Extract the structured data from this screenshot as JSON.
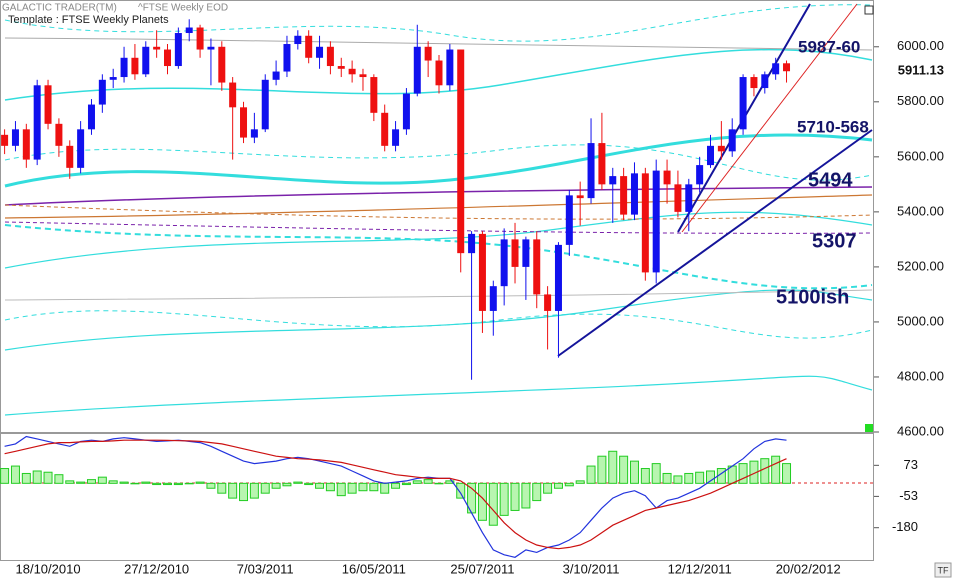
{
  "chart_data": {
    "type": "candlestick",
    "header": "GALACTIC TRADER(TM)",
    "symbol": "^FTSE Weekly EOD",
    "template": "Template : FTSE Weekly Planets",
    "corner_label": "TF",
    "up_color": "#1010ee",
    "down_color": "#ee1010",
    "ohlc": [
      [
        5680,
        5700,
        5610,
        5640
      ],
      [
        5640,
        5730,
        5620,
        5700
      ],
      [
        5700,
        5720,
        5560,
        5590
      ],
      [
        5590,
        5880,
        5570,
        5860
      ],
      [
        5860,
        5880,
        5700,
        5720
      ],
      [
        5720,
        5740,
        5600,
        5640
      ],
      [
        5640,
        5660,
        5520,
        5560
      ],
      [
        5560,
        5730,
        5540,
        5700
      ],
      [
        5700,
        5810,
        5680,
        5790
      ],
      [
        5790,
        5900,
        5760,
        5880
      ],
      [
        5880,
        5920,
        5850,
        5890
      ],
      [
        5890,
        6000,
        5870,
        5960
      ],
      [
        5960,
        6010,
        5880,
        5900
      ],
      [
        5900,
        6020,
        5890,
        6000
      ],
      [
        6000,
        6060,
        5960,
        5990
      ],
      [
        5990,
        6010,
        5900,
        5930
      ],
      [
        5930,
        6070,
        5920,
        6050
      ],
      [
        6050,
        6100,
        6020,
        6070
      ],
      [
        6070,
        6080,
        5960,
        5990
      ],
      [
        5990,
        6030,
        5860,
        6000
      ],
      [
        6000,
        6020,
        5840,
        5870
      ],
      [
        5870,
        5890,
        5590,
        5780
      ],
      [
        5780,
        5800,
        5650,
        5670
      ],
      [
        5670,
        5760,
        5650,
        5700
      ],
      [
        5700,
        5900,
        5690,
        5880
      ],
      [
        5880,
        5950,
        5860,
        5910
      ],
      [
        5910,
        6040,
        5890,
        6010
      ],
      [
        6010,
        6060,
        5990,
        6040
      ],
      [
        6040,
        6060,
        5940,
        5960
      ],
      [
        5960,
        6040,
        5920,
        6000
      ],
      [
        6000,
        6020,
        5900,
        5930
      ],
      [
        5930,
        5960,
        5890,
        5920
      ],
      [
        5920,
        5950,
        5870,
        5900
      ],
      [
        5900,
        5920,
        5840,
        5890
      ],
      [
        5890,
        5900,
        5730,
        5760
      ],
      [
        5760,
        5790,
        5620,
        5640
      ],
      [
        5640,
        5730,
        5620,
        5700
      ],
      [
        5700,
        5850,
        5680,
        5830
      ],
      [
        5830,
        6080,
        5820,
        6000
      ],
      [
        6000,
        6020,
        5890,
        5950
      ],
      [
        5950,
        5970,
        5830,
        5860
      ],
      [
        5860,
        6010,
        5840,
        5990
      ],
      [
        5990,
        5990,
        5180,
        5250
      ],
      [
        5250,
        5330,
        4790,
        5320
      ],
      [
        5320,
        5330,
        4960,
        5040
      ],
      [
        5040,
        5150,
        4950,
        5130
      ],
      [
        5130,
        5340,
        5060,
        5300
      ],
      [
        5300,
        5360,
        5140,
        5200
      ],
      [
        5200,
        5310,
        5080,
        5300
      ],
      [
        5300,
        5330,
        5050,
        5100
      ],
      [
        5100,
        5130,
        4900,
        5040
      ],
      [
        5040,
        5290,
        4870,
        5280
      ],
      [
        5280,
        5480,
        5240,
        5460
      ],
      [
        5460,
        5510,
        5350,
        5450
      ],
      [
        5450,
        5740,
        5430,
        5650
      ],
      [
        5650,
        5760,
        5480,
        5500
      ],
      [
        5500,
        5560,
        5360,
        5530
      ],
      [
        5530,
        5560,
        5370,
        5390
      ],
      [
        5390,
        5580,
        5370,
        5540
      ],
      [
        5540,
        5560,
        5150,
        5180
      ],
      [
        5180,
        5590,
        5140,
        5550
      ],
      [
        5550,
        5590,
        5430,
        5500
      ],
      [
        5500,
        5550,
        5380,
        5400
      ],
      [
        5400,
        5520,
        5330,
        5500
      ],
      [
        5500,
        5600,
        5470,
        5570
      ],
      [
        5570,
        5680,
        5560,
        5640
      ],
      [
        5640,
        5730,
        5590,
        5620
      ],
      [
        5620,
        5740,
        5600,
        5700
      ],
      [
        5700,
        5900,
        5680,
        5890
      ],
      [
        5890,
        5900,
        5820,
        5850
      ],
      [
        5850,
        5910,
        5830,
        5900
      ],
      [
        5900,
        5960,
        5880,
        5940
      ],
      [
        5940,
        5950,
        5870,
        5911.13
      ]
    ],
    "xlabels": [
      "18/10/2010",
      "27/12/2010",
      "7/03/2011",
      "16/05/2011",
      "25/07/2011",
      "3/10/2011",
      "12/12/2011",
      "20/02/2012"
    ],
    "ylim": [
      4600,
      6170
    ],
    "yticks": [
      {
        "value": 4600,
        "label": "4600.00"
      },
      {
        "value": 4800,
        "label": "4800.00"
      },
      {
        "value": 5000,
        "label": "5000.00"
      },
      {
        "value": 5200,
        "label": "5200.00"
      },
      {
        "value": 5400,
        "label": "5400.00"
      },
      {
        "value": 5600,
        "label": "5600.00"
      },
      {
        "value": 5800,
        "label": "5800.00"
      },
      {
        "value": 6000,
        "label": "6000.00"
      }
    ],
    "annotations": [
      "5987-60",
      "5710-568",
      "5494",
      "5307",
      "5100ish"
    ],
    "indicator": {
      "ylim": [
        -311,
        196
      ],
      "yticks": [
        73,
        -53,
        -180
      ],
      "histogram_color": "#22cc22",
      "histogram": [
        60,
        70,
        40,
        50,
        45,
        35,
        10,
        5,
        15,
        25,
        10,
        5,
        0,
        5,
        -5,
        -5,
        -5,
        0,
        5,
        -20,
        -40,
        -60,
        -70,
        -60,
        -40,
        -20,
        -10,
        5,
        -5,
        -20,
        -30,
        -50,
        -40,
        -30,
        -30,
        -40,
        -20,
        -5,
        10,
        15,
        0,
        10,
        -60,
        -120,
        -150,
        -170,
        -130,
        -110,
        -100,
        -70,
        -40,
        -20,
        -10,
        10,
        70,
        110,
        130,
        110,
        90,
        60,
        80,
        40,
        30,
        40,
        45,
        50,
        60,
        70,
        80,
        90,
        100,
        110,
        80
      ],
      "series": [
        {
          "color": "#2233dd",
          "values": [
            150,
            160,
            190,
            180,
            170,
            160,
            150,
            170,
            175,
            170,
            180,
            185,
            180,
            175,
            170,
            172,
            175,
            170,
            165,
            150,
            130,
            110,
            90,
            80,
            85,
            90,
            100,
            105,
            100,
            90,
            80,
            70,
            50,
            30,
            10,
            0,
            5,
            10,
            20,
            25,
            20,
            20,
            -40,
            -120,
            -200,
            -270,
            -290,
            -300,
            -270,
            -280,
            -260,
            -250,
            -230,
            -200,
            -150,
            -100,
            -60,
            -40,
            -30,
            -50,
            -100,
            -70,
            -60,
            -40,
            -20,
            10,
            40,
            70,
            100,
            140,
            170,
            180,
            175
          ]
        },
        {
          "color": "#cc1111",
          "values": [
            120,
            130,
            140,
            150,
            160,
            165,
            165,
            168,
            170,
            170,
            172,
            175,
            175,
            175,
            175,
            174,
            173,
            172,
            170,
            165,
            160,
            150,
            140,
            130,
            120,
            110,
            105,
            100,
            98,
            95,
            90,
            85,
            75,
            65,
            55,
            45,
            35,
            30,
            25,
            20,
            20,
            20,
            10,
            -20,
            -60,
            -110,
            -160,
            -200,
            -230,
            -250,
            -260,
            -265,
            -260,
            -250,
            -230,
            -200,
            -170,
            -150,
            -130,
            -110,
            -100,
            -90,
            -80,
            -70,
            -55,
            -40,
            -20,
            0,
            20,
            40,
            60,
            80,
            100
          ]
        }
      ]
    }
  }
}
